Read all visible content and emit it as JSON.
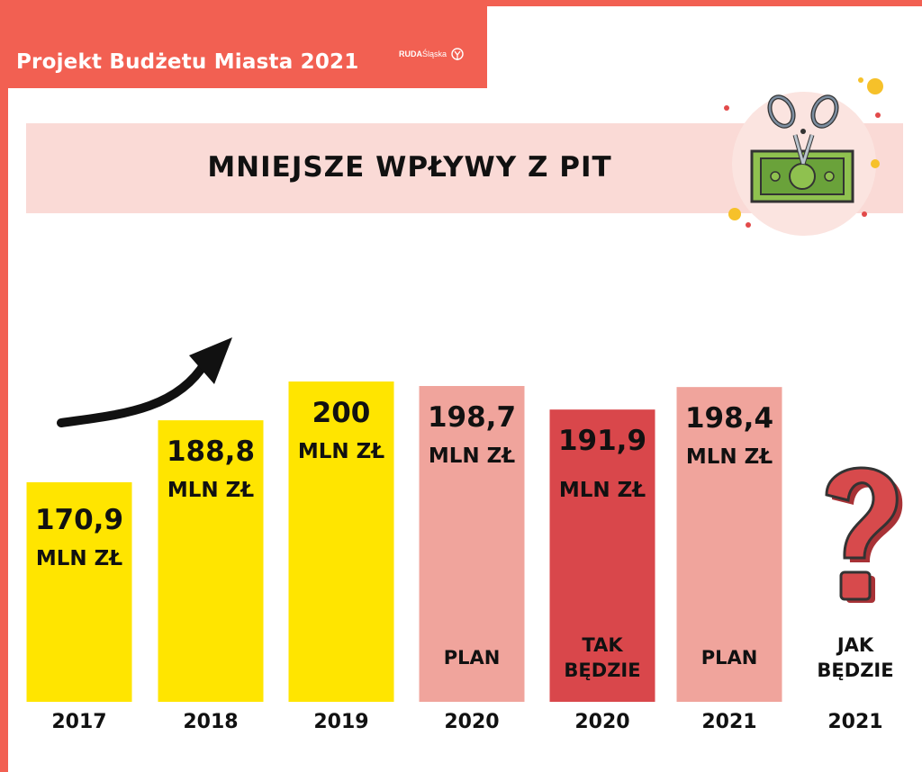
{
  "header": {
    "title": "Projekt Budżetu Miasta 2021",
    "logo_bold": "RUDA",
    "logo_light": "Śląska"
  },
  "colors": {
    "accent": "#f26052",
    "banner": "#fadad6",
    "actual": "#ffe500",
    "plan": "#f0a49c",
    "forecast": "#d9474b",
    "question": "#d74a4c"
  },
  "chart_data": {
    "type": "bar",
    "title": "MNIEJSZE WPŁYWY Z PIT",
    "unit": "MLN ZŁ",
    "categories": [
      "2017",
      "2018",
      "2019",
      "2020",
      "2020",
      "2021",
      "2021"
    ],
    "values": [
      170.9,
      188.8,
      200,
      198.7,
      191.9,
      198.4,
      null
    ],
    "value_labels": [
      "170,9",
      "188,8",
      "200",
      "198,7",
      "191,9",
      "198,4",
      ""
    ],
    "notes": [
      "",
      "",
      "",
      "PLAN",
      "TAK BĘDZIE",
      "PLAN",
      "JAK BĘDZIE"
    ],
    "kinds": [
      "actual",
      "actual",
      "actual",
      "plan",
      "forecast",
      "plan",
      "unknown"
    ],
    "icons": [
      "scissors-cutting-money-icon",
      "up-trend-arrow-icon",
      "question-mark-icon"
    ]
  }
}
